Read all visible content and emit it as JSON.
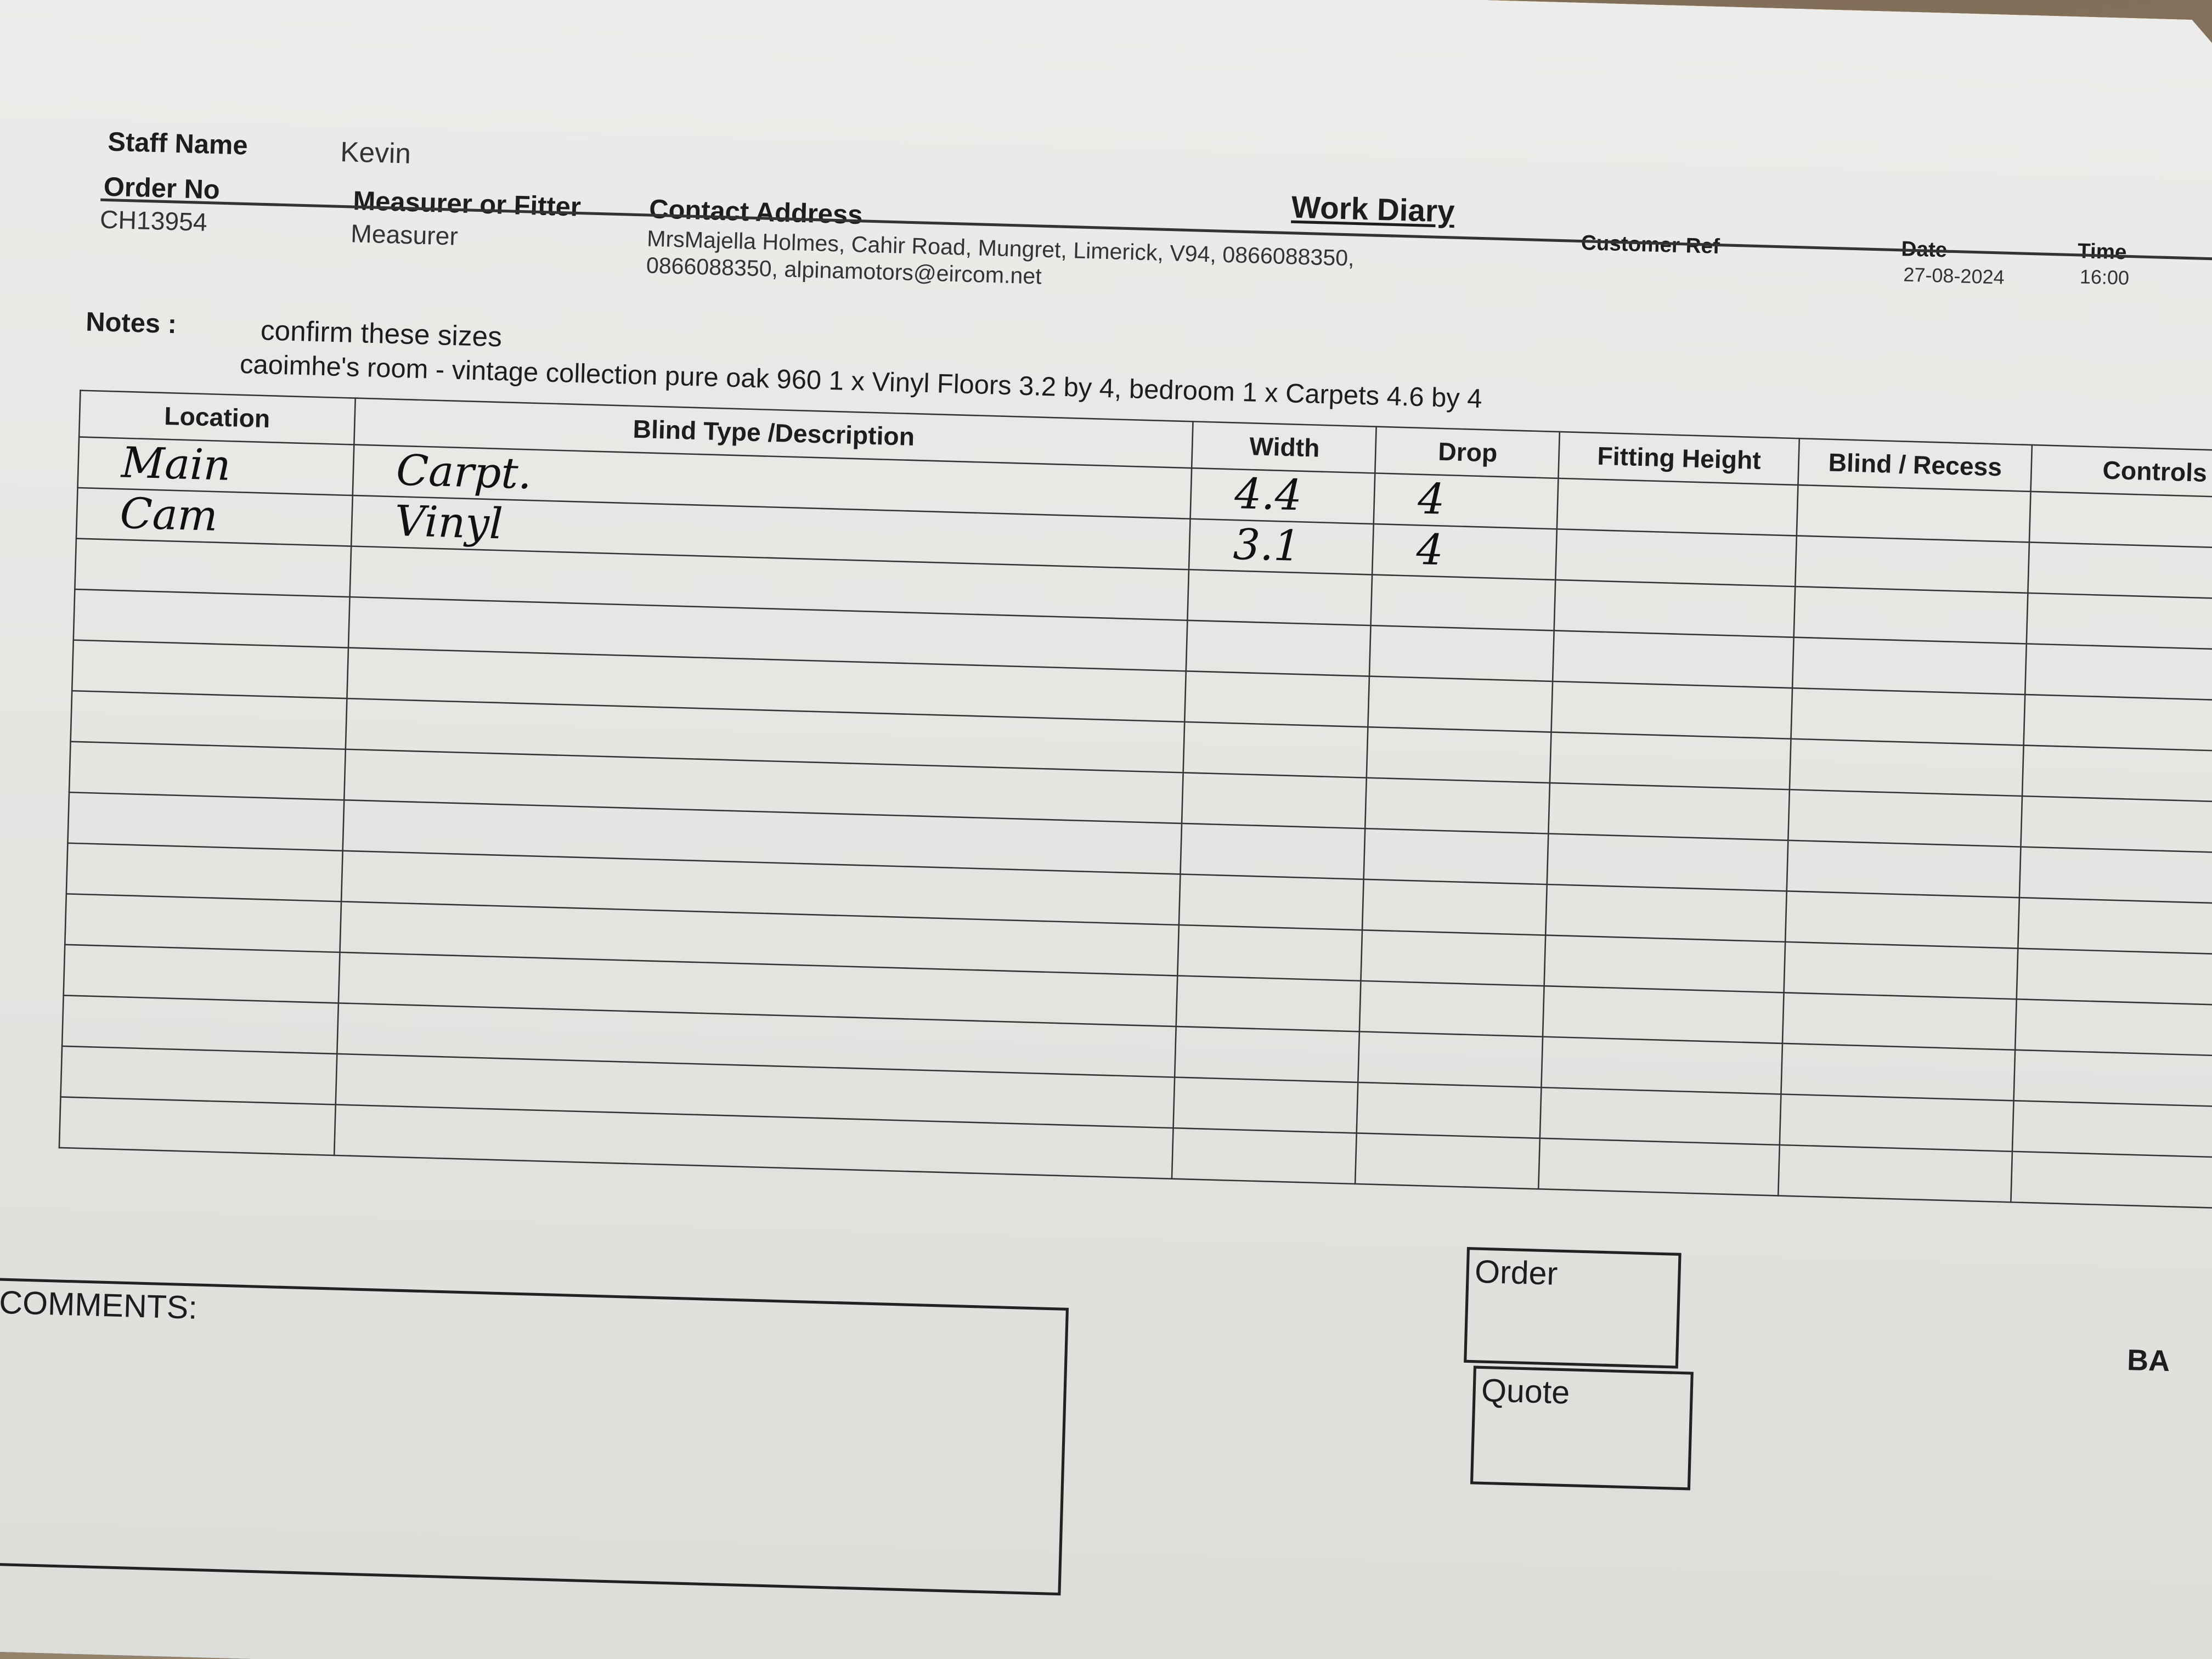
{
  "header": {
    "staff_name_label": "Staff Name",
    "staff_name": "Kevin",
    "order_no_label": "Order No",
    "order_no": "CH13954",
    "role_label": "Measurer or Fitter",
    "role": "Measurer",
    "contact_label": "Contact Address",
    "contact_line1": "MrsMajella Holmes, Cahir Road, Mungret, Limerick, V94, 0866088350,",
    "contact_line2": "0866088350, alpinamotors@eircom.net",
    "title": "Work Diary",
    "customer_ref_label": "Customer Ref",
    "date_label": "Date",
    "date": "27-08-2024",
    "time_label": "Time",
    "time": "16:00"
  },
  "notes": {
    "label": "Notes :",
    "line1": "confirm these sizes",
    "line2": "caoimhe's room - vintage collection pure oak 960 1 x Vinyl Floors 3.2 by 4, bedroom 1 x Carpets 4.6 by 4"
  },
  "table": {
    "columns": [
      "Location",
      "Blind Type /Description",
      "Width",
      "Drop",
      "Fitting Height",
      "Blind / Recess",
      "Controls"
    ],
    "rows": [
      [
        "Main",
        "Carpt.",
        "4.4",
        "4",
        "",
        "",
        ""
      ],
      [
        "Cam",
        "Vinyl",
        "3.1",
        "4",
        "",
        "",
        ""
      ]
    ],
    "empty_rows": 12
  },
  "footer": {
    "comments_label": "COMMENTS:",
    "order_label": "Order",
    "quote_label": "Quote",
    "cut_off_text": "BA"
  }
}
